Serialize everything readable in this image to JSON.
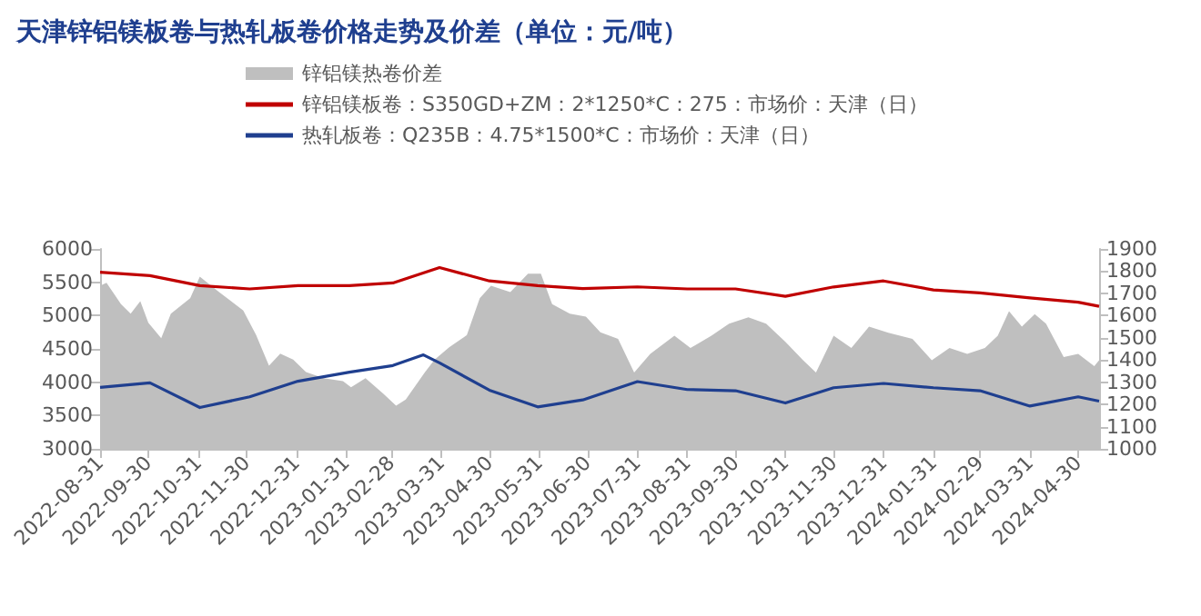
{
  "chart_data": {
    "type": "line",
    "title": "天津锌铝镁板卷与热轧板卷价格走势及价差（单位：元/吨）",
    "xlim": [
      "2022-08-31",
      "2024-05-13"
    ],
    "xticks": [
      "2022-08-31",
      "2022-09-30",
      "2022-10-31",
      "2022-11-30",
      "2022-12-31",
      "2023-01-31",
      "2023-02-28",
      "2023-03-31",
      "2023-04-30",
      "2023-05-31",
      "2023-06-30",
      "2023-07-31",
      "2023-08-31",
      "2023-09-30",
      "2023-10-31",
      "2023-11-30",
      "2023-12-31",
      "2024-01-31",
      "2024-02-29",
      "2024-03-31",
      "2024-04-30"
    ],
    "ylim": [
      3000,
      6000
    ],
    "yticks": [
      3000,
      3500,
      4000,
      4500,
      5000,
      5500,
      6000
    ],
    "y2lim": [
      1000,
      1900
    ],
    "y2ticks": [
      1000,
      1100,
      1200,
      1300,
      1400,
      1500,
      1600,
      1700,
      1800,
      1900
    ],
    "grid": false,
    "legend": "top",
    "marker": "none",
    "line_style": "solid",
    "series": [
      {
        "name": "锌铝镁热卷价差",
        "type": "area",
        "axis": "y2",
        "color": "#bfbfbf",
        "x": [
          "2022-08-31",
          "2022-09-04",
          "2022-09-13",
          "2022-09-19",
          "2022-09-25",
          "2022-09-30",
          "2022-10-08",
          "2022-10-14",
          "2022-10-26",
          "2022-11-01",
          "2022-11-13",
          "2022-11-28",
          "2022-12-06",
          "2022-12-14",
          "2022-12-21",
          "2022-12-29",
          "2023-01-06",
          "2023-01-17",
          "2023-01-29",
          "2023-02-03",
          "2023-02-12",
          "2023-02-23",
          "2023-03-03",
          "2023-03-09",
          "2023-03-21",
          "2023-03-27",
          "2023-04-05",
          "2023-04-16",
          "2023-04-24",
          "2023-05-01",
          "2023-05-13",
          "2023-05-24",
          "2023-06-01",
          "2023-06-08",
          "2023-06-19",
          "2023-06-29",
          "2023-07-08",
          "2023-07-19",
          "2023-07-29",
          "2023-08-08",
          "2023-08-23",
          "2023-09-02",
          "2023-09-15",
          "2023-09-26",
          "2023-10-08",
          "2023-10-19",
          "2023-10-31",
          "2023-11-11",
          "2023-11-19",
          "2023-11-30",
          "2023-12-11",
          "2023-12-22",
          "2024-01-03",
          "2024-01-18",
          "2024-01-30",
          "2024-02-10",
          "2024-02-21",
          "2024-03-03",
          "2024-03-11",
          "2024-03-18",
          "2024-03-26",
          "2024-04-03",
          "2024-04-10",
          "2024-04-21",
          "2024-04-30",
          "2024-05-10",
          "2024-05-13"
        ],
        "values": [
          1734,
          1748,
          1651,
          1609,
          1665,
          1568,
          1498,
          1609,
          1678,
          1775,
          1706,
          1623,
          1512,
          1374,
          1429,
          1402,
          1346,
          1318,
          1305,
          1277,
          1318,
          1249,
          1194,
          1222,
          1346,
          1402,
          1457,
          1512,
          1678,
          1734,
          1706,
          1789,
          1789,
          1651,
          1609,
          1595,
          1525,
          1495,
          1344,
          1427,
          1509,
          1454,
          1509,
          1564,
          1592,
          1564,
          1482,
          1399,
          1344,
          1509,
          1454,
          1550,
          1523,
          1495,
          1399,
          1454,
          1427,
          1454,
          1509,
          1620,
          1550,
          1606,
          1564,
          1413,
          1427,
          1372,
          1399
        ]
      },
      {
        "name": "锌铝镁板卷：S350GD+ZM：2*1250*C：275：市场价：天津（日）",
        "color": "#c00000",
        "x": [
          "2022-08-31",
          "2022-10-01",
          "2022-11-01",
          "2022-12-02",
          "2023-01-01",
          "2023-02-02",
          "2023-03-01",
          "2023-03-30",
          "2023-04-30",
          "2023-05-30",
          "2023-06-27",
          "2023-07-31",
          "2023-08-31",
          "2023-09-30",
          "2023-10-31",
          "2023-11-30",
          "2023-12-31",
          "2024-01-31",
          "2024-02-29",
          "2024-03-31",
          "2024-04-30",
          "2024-05-13"
        ],
        "values": [
          5650,
          5600,
          5450,
          5400,
          5450,
          5450,
          5490,
          5720,
          5520,
          5450,
          5404,
          5431,
          5400,
          5400,
          5290,
          5430,
          5520,
          5385,
          5340,
          5266,
          5200,
          5140
        ]
      },
      {
        "name": "热轧板卷：Q235B：4.75*1500*C：市场价：天津（日）",
        "color": "#1f3f8f",
        "x": [
          "2022-08-31",
          "2022-10-01",
          "2022-11-01",
          "2022-12-02",
          "2023-01-01",
          "2023-02-02",
          "2023-03-01",
          "2023-03-20",
          "2023-03-30",
          "2023-04-30",
          "2023-05-30",
          "2023-06-27",
          "2023-07-31",
          "2023-08-31",
          "2023-09-30",
          "2023-10-31",
          "2023-11-30",
          "2023-12-31",
          "2024-01-31",
          "2024-02-29",
          "2024-03-31",
          "2024-04-30",
          "2024-05-13"
        ],
        "values": [
          3923,
          3990,
          3620,
          3780,
          4015,
          4150,
          4250,
          4410,
          4290,
          3880,
          3630,
          3734,
          4009,
          3890,
          3872,
          3688,
          3917,
          3982,
          3917,
          3872,
          3642,
          3780,
          3716
        ]
      }
    ]
  }
}
